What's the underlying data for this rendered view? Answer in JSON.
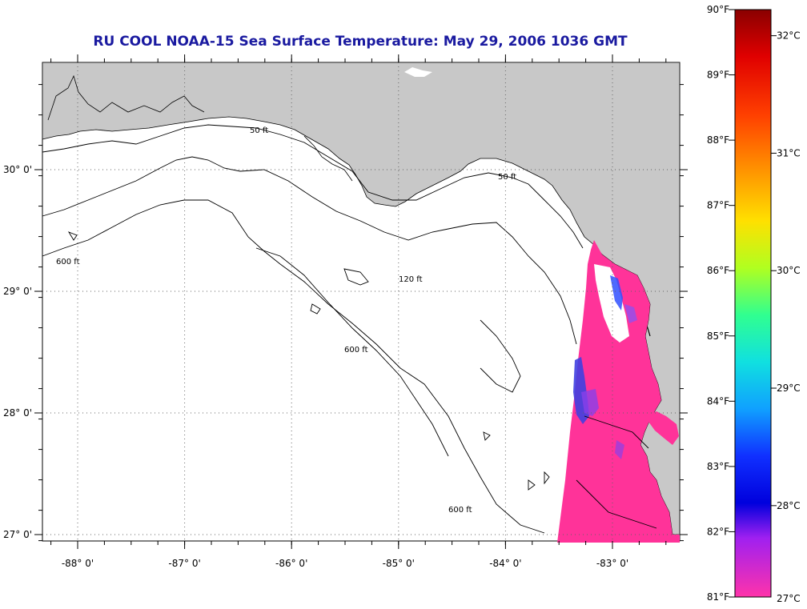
{
  "title": "RU COOL  NOAA-15  Sea Surface Temperature:  May 29, 2006 1036 GMT",
  "map": {
    "lon_ticks": [
      {
        "value": -88,
        "label": "-88° 0'"
      },
      {
        "value": -87,
        "label": "-87° 0'"
      },
      {
        "value": -86,
        "label": "-86° 0'"
      },
      {
        "value": -85,
        "label": "-85° 0'"
      },
      {
        "value": -84,
        "label": "-84° 0'"
      },
      {
        "value": -83,
        "label": "-83° 0'"
      }
    ],
    "lat_ticks": [
      {
        "value": 30,
        "label": "30° 0'"
      },
      {
        "value": 29,
        "label": "29° 0'"
      },
      {
        "value": 28,
        "label": "28° 0'"
      },
      {
        "value": 27,
        "label": "27° 0'"
      }
    ],
    "contour_labels": [
      "50 ft",
      "120 ft",
      "600 ft"
    ],
    "colors": {
      "land": "#c8c8c8",
      "water": "#ffffff",
      "sst": "#ff3399",
      "cool": "#3333dd",
      "grid": "#888888"
    }
  },
  "colorbar": {
    "fahrenheit": [
      "90°F",
      "89°F",
      "88°F",
      "87°F",
      "86°F",
      "85°F",
      "84°F",
      "83°F",
      "82°F",
      "81°F"
    ],
    "celsius": [
      "32°C",
      "31°C",
      "30°C",
      "29°C",
      "28°C",
      "27°C"
    ]
  }
}
